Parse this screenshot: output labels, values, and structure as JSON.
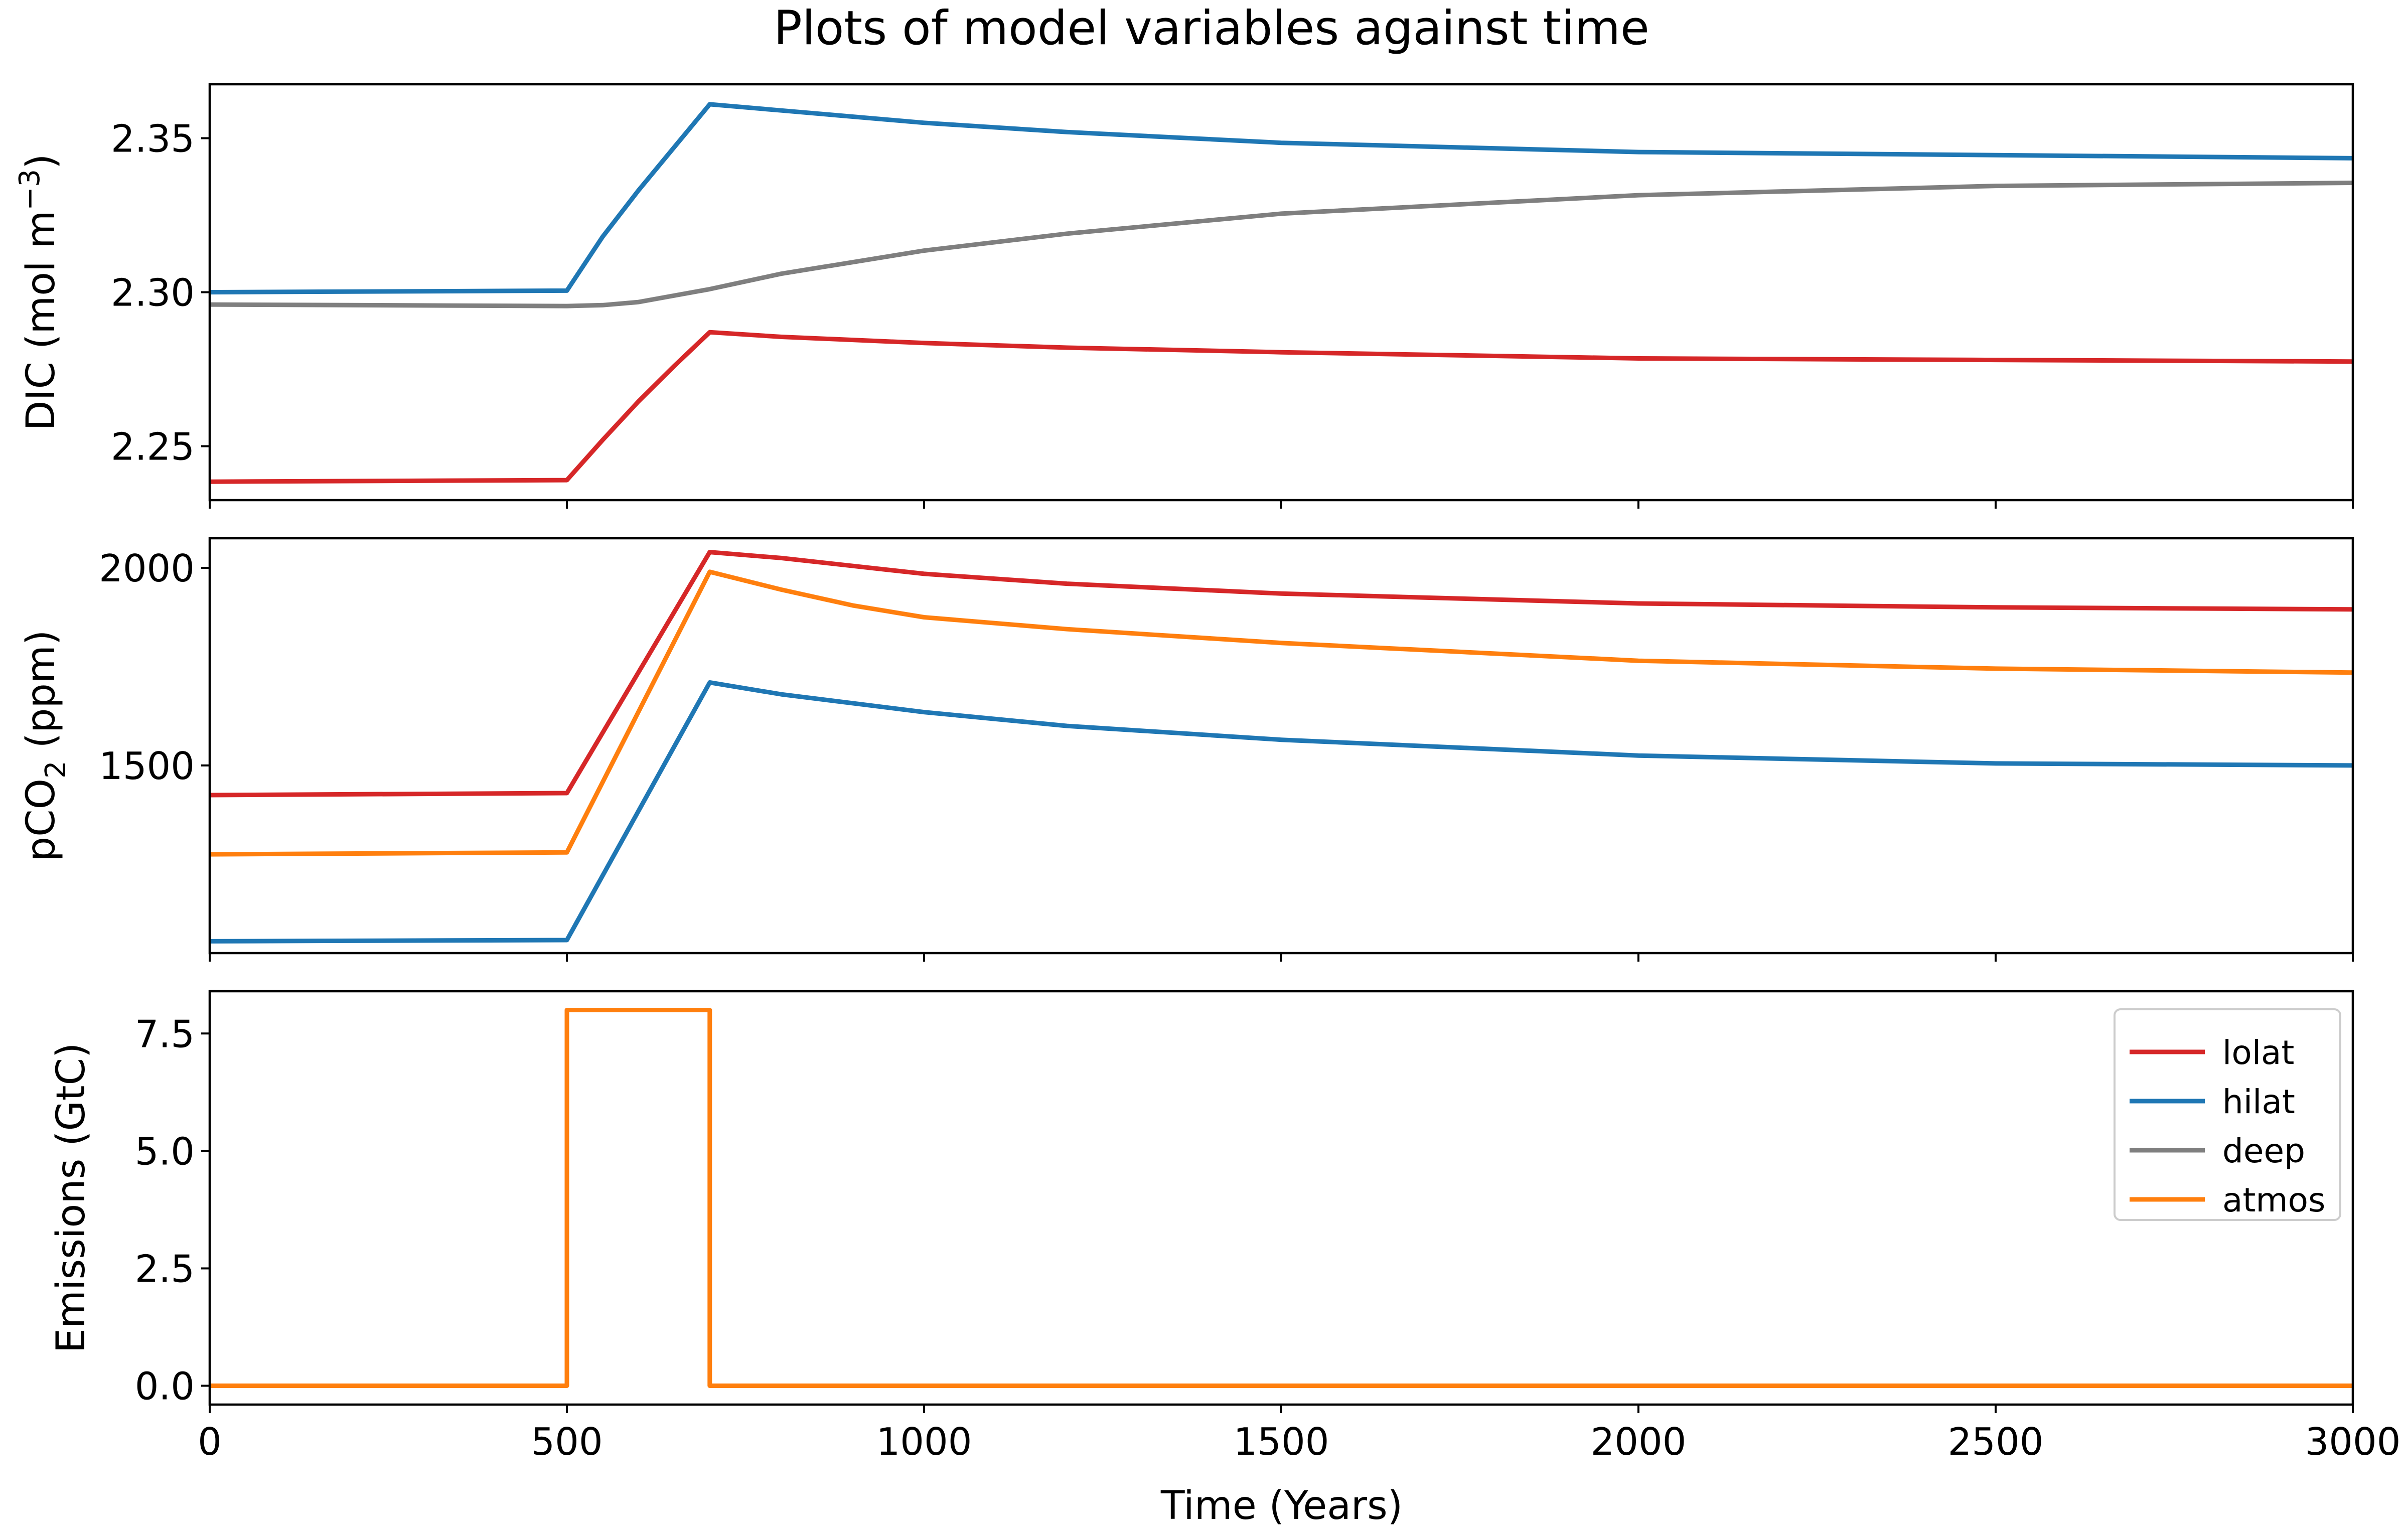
{
  "title": "Plots of model variables against time",
  "xlabel": "Time (Years)",
  "legend": {
    "placement": "top-right",
    "panel": 2,
    "entries": [
      {
        "label": "lolat",
        "color": "#d62728"
      },
      {
        "label": "hilat",
        "color": "#1f77b4"
      },
      {
        "label": "deep",
        "color": "#7f7f7f"
      },
      {
        "label": "atmos",
        "color": "#ff7f0e"
      }
    ]
  },
  "chart_data": [
    {
      "type": "line",
      "ylabel": "DIC (mol m⁻³)",
      "ylabel_parts": [
        "DIC (mol m",
        "−3",
        ")"
      ],
      "xlim": [
        0,
        3000
      ],
      "ylim": [
        2.2325,
        2.3675
      ],
      "yticks": [
        2.25,
        2.3,
        2.35
      ],
      "ytick_labels": [
        "2.25",
        "2.30",
        "2.35"
      ],
      "xticks": [
        0,
        500,
        1000,
        1500,
        2000,
        2500,
        3000
      ],
      "show_xtick_labels": false,
      "series": [
        {
          "name": "hilat",
          "color": "#1f77b4",
          "x": [
            0,
            500,
            550,
            600,
            650,
            700,
            800,
            1000,
            1200,
            1500,
            2000,
            2500,
            3000
          ],
          "y": [
            2.3,
            2.3005,
            2.318,
            2.333,
            2.347,
            2.361,
            2.359,
            2.355,
            2.352,
            2.3485,
            2.3455,
            2.3445,
            2.3435
          ]
        },
        {
          "name": "deep",
          "color": "#7f7f7f",
          "x": [
            0,
            500,
            550,
            600,
            700,
            800,
            1000,
            1200,
            1500,
            2000,
            2500,
            3000
          ],
          "y": [
            2.296,
            2.2955,
            2.2958,
            2.2968,
            2.301,
            2.306,
            2.3135,
            2.319,
            2.3255,
            2.3315,
            2.3345,
            2.3355
          ]
        },
        {
          "name": "lolat",
          "color": "#d62728",
          "x": [
            0,
            500,
            550,
            600,
            650,
            700,
            800,
            1000,
            1200,
            1500,
            2000,
            2500,
            3000
          ],
          "y": [
            2.2385,
            2.239,
            2.252,
            2.2645,
            2.276,
            2.287,
            2.2855,
            2.2835,
            2.282,
            2.2805,
            2.2785,
            2.278,
            2.2775
          ]
        }
      ]
    },
    {
      "type": "line",
      "ylabel": "pCO₂ (ppm)",
      "ylabel_parts": [
        "pCO",
        "2",
        " (ppm)"
      ],
      "xlim": [
        0,
        3000
      ],
      "ylim": [
        1025,
        2075
      ],
      "yticks": [
        1500,
        2000
      ],
      "ytick_labels": [
        "1500",
        "2000"
      ],
      "xticks": [
        0,
        500,
        1000,
        1500,
        2000,
        2500,
        3000
      ],
      "show_xtick_labels": false,
      "series": [
        {
          "name": "lolat",
          "color": "#d62728",
          "x": [
            0,
            500,
            700,
            800,
            1000,
            1200,
            1500,
            2000,
            2500,
            3000
          ],
          "y": [
            1425,
            1430,
            2040,
            2025,
            1985,
            1960,
            1935,
            1910,
            1900,
            1895
          ]
        },
        {
          "name": "atmos",
          "color": "#ff7f0e",
          "x": [
            0,
            500,
            700,
            800,
            900,
            1000,
            1200,
            1500,
            2000,
            2500,
            3000
          ],
          "y": [
            1275,
            1280,
            1990,
            1945,
            1905,
            1875,
            1845,
            1810,
            1765,
            1745,
            1735
          ]
        },
        {
          "name": "hilat",
          "color": "#1f77b4",
          "x": [
            0,
            500,
            700,
            800,
            1000,
            1200,
            1500,
            2000,
            2500,
            3000
          ],
          "y": [
            1055,
            1058,
            1710,
            1680,
            1635,
            1600,
            1565,
            1525,
            1505,
            1500
          ]
        }
      ]
    },
    {
      "type": "line",
      "ylabel": "Emissions (GtC)",
      "ylabel_parts": [
        "Emissions (GtC)",
        "",
        ""
      ],
      "xlim": [
        0,
        3000
      ],
      "ylim": [
        -0.4,
        8.4
      ],
      "yticks": [
        0.0,
        2.5,
        5.0,
        7.5
      ],
      "ytick_labels": [
        "0.0",
        "2.5",
        "5.0",
        "7.5"
      ],
      "xticks": [
        0,
        500,
        1000,
        1500,
        2000,
        2500,
        3000
      ],
      "xtick_labels": [
        "0",
        "500",
        "1000",
        "1500",
        "2000",
        "2500",
        "3000"
      ],
      "show_xtick_labels": true,
      "series": [
        {
          "name": "atmos",
          "color": "#ff7f0e",
          "x": [
            0,
            500,
            500,
            700,
            700,
            3000
          ],
          "y": [
            0,
            0,
            8,
            8,
            0,
            0
          ]
        }
      ]
    }
  ]
}
